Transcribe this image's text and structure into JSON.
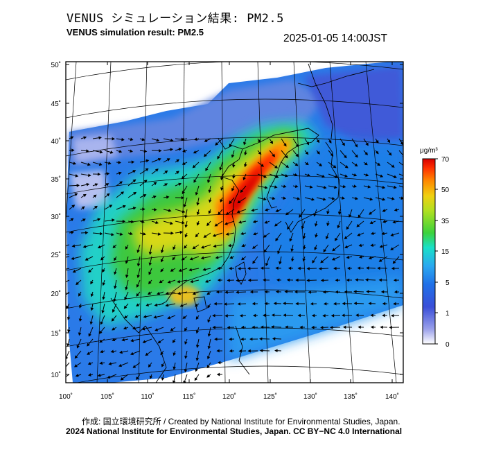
{
  "header": {
    "title_jp": "VENUS シミュレーション結果: PM2.5",
    "title_en": "VENUS simulation result: PM2.5",
    "timestamp": "2025-01-05 14:00JST"
  },
  "map": {
    "lon_ticks": [
      "100˚",
      "105˚",
      "110˚",
      "115˚",
      "120˚",
      "125˚",
      "130˚",
      "135˚",
      "140˚"
    ],
    "lat_ticks": [
      "50˚",
      "45˚",
      "40˚",
      "35˚",
      "30˚",
      "25˚",
      "20˚",
      "15˚",
      "10˚"
    ],
    "lon_range": [
      100,
      142
    ],
    "lat_range": [
      9,
      51
    ],
    "variable": "PM2.5"
  },
  "colorbar": {
    "unit": "μg/m³",
    "ticks": [
      "70",
      "50",
      "35",
      "15",
      "5",
      "1",
      "0"
    ],
    "colors": [
      "#ffffff",
      "#3a4fd8",
      "#2a9af0",
      "#19e0c8",
      "#3cd23c",
      "#e0e010",
      "#ff8a00",
      "#ff2000",
      "#d80000"
    ]
  },
  "footer": {
    "credit": "作成: 国立環境研究所 / Created by National Institute for Environmental Studies, Japan.",
    "license": "2024 National Institute for Environmental Studies, Japan. CC BY−NC 4.0 International"
  }
}
